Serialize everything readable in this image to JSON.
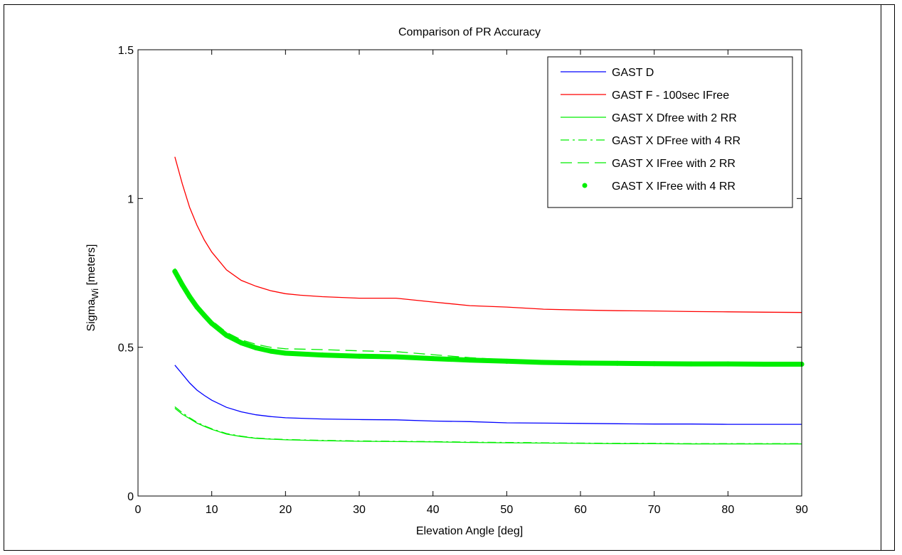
{
  "chart_data": {
    "type": "line",
    "title": "Comparison of PR Accuracy",
    "xlabel": "Elevation Angle [deg]",
    "ylabel_main": "Sigma",
    "ylabel_sub": "Wi",
    "ylabel_unit": " [meters]",
    "xlim": [
      0,
      90
    ],
    "ylim": [
      0,
      1.5
    ],
    "xticks": [
      0,
      10,
      20,
      30,
      40,
      50,
      60,
      70,
      80,
      90
    ],
    "xtick_labels": [
      "0",
      "10",
      "20",
      "30",
      "40",
      "50",
      "60",
      "70",
      "80",
      "90"
    ],
    "yticks": [
      0,
      0.5,
      1,
      1.5
    ],
    "ytick_labels": [
      "0",
      "0.5",
      "1",
      "1.5"
    ],
    "grid": false,
    "legend_position": "top-right",
    "colors": {
      "blue": "#0000ff",
      "red": "#ff0000",
      "green": "#00ee00"
    },
    "series": [
      {
        "name": "GAST D",
        "color": "#0000ff",
        "style": "solid",
        "x": [
          5,
          6,
          7,
          8,
          9,
          10,
          12,
          14,
          16,
          18,
          20,
          25,
          30,
          35,
          40,
          45,
          50,
          55,
          60,
          65,
          70,
          75,
          80,
          85,
          90
        ],
        "y": [
          0.44,
          0.41,
          0.38,
          0.356,
          0.338,
          0.322,
          0.298,
          0.283,
          0.273,
          0.267,
          0.263,
          0.259,
          0.257,
          0.256,
          0.252,
          0.25,
          0.246,
          0.245,
          0.244,
          0.243,
          0.242,
          0.242,
          0.241,
          0.241,
          0.241
        ]
      },
      {
        "name": "GAST F - 100sec IFree",
        "color": "#ff0000",
        "style": "solid",
        "x": [
          5,
          6,
          7,
          8,
          9,
          10,
          12,
          14,
          16,
          18,
          20,
          22,
          25,
          30,
          35,
          40,
          45,
          50,
          55,
          60,
          65,
          70,
          75,
          80,
          85,
          90
        ],
        "y": [
          1.14,
          1.05,
          0.97,
          0.91,
          0.86,
          0.82,
          0.76,
          0.725,
          0.705,
          0.69,
          0.68,
          0.675,
          0.67,
          0.665,
          0.665,
          0.652,
          0.64,
          0.635,
          0.628,
          0.625,
          0.623,
          0.622,
          0.62,
          0.619,
          0.618,
          0.617
        ]
      },
      {
        "name": "GAST X Dfree with 2 RR",
        "color": "#00ee00",
        "style": "solid",
        "x": [
          5,
          6,
          7,
          8,
          9,
          10,
          12,
          14,
          16,
          18,
          20,
          25,
          30,
          35,
          40,
          45,
          50,
          55,
          60,
          65,
          70,
          75,
          80,
          85,
          90
        ],
        "y": [
          0.295,
          0.275,
          0.26,
          0.245,
          0.234,
          0.224,
          0.208,
          0.2,
          0.194,
          0.191,
          0.189,
          0.186,
          0.184,
          0.183,
          0.182,
          0.18,
          0.179,
          0.178,
          0.177,
          0.176,
          0.176,
          0.175,
          0.175,
          0.175,
          0.175
        ]
      },
      {
        "name": "GAST X DFree with 4 RR",
        "color": "#00ee00",
        "style": "dashdot",
        "x": [
          5,
          6,
          7,
          8,
          9,
          10,
          12,
          14,
          16,
          18,
          20,
          25,
          30,
          35,
          40,
          45,
          50,
          55,
          60,
          65,
          70,
          75,
          80,
          85,
          90
        ],
        "y": [
          0.3,
          0.28,
          0.263,
          0.248,
          0.236,
          0.226,
          0.21,
          0.201,
          0.195,
          0.192,
          0.19,
          0.187,
          0.185,
          0.184,
          0.183,
          0.181,
          0.18,
          0.179,
          0.178,
          0.177,
          0.177,
          0.176,
          0.176,
          0.176,
          0.176
        ]
      },
      {
        "name": "GAST X IFree with 2 RR",
        "color": "#00ee00",
        "style": "dashed",
        "x": [
          5,
          6,
          7,
          8,
          9,
          10,
          12,
          14,
          16,
          18,
          20,
          25,
          30,
          35,
          40,
          45,
          50,
          55,
          60,
          65,
          70,
          75,
          80,
          85,
          90
        ],
        "y": [
          0.765,
          0.72,
          0.68,
          0.645,
          0.615,
          0.59,
          0.55,
          0.525,
          0.51,
          0.5,
          0.495,
          0.492,
          0.488,
          0.485,
          0.475,
          0.465,
          0.458,
          0.455,
          0.452,
          0.45,
          0.449,
          0.448,
          0.447,
          0.447,
          0.447
        ]
      },
      {
        "name": "GAST X IFree with 4 RR",
        "color": "#00ee00",
        "style": "markers",
        "x": [
          5,
          6,
          7,
          8,
          9,
          10,
          12,
          14,
          16,
          18,
          20,
          25,
          30,
          35,
          40,
          45,
          50,
          55,
          60,
          65,
          70,
          75,
          80,
          85,
          90
        ],
        "y": [
          0.755,
          0.71,
          0.67,
          0.635,
          0.607,
          0.58,
          0.54,
          0.515,
          0.498,
          0.487,
          0.48,
          0.474,
          0.47,
          0.468,
          0.462,
          0.457,
          0.453,
          0.449,
          0.447,
          0.446,
          0.445,
          0.444,
          0.444,
          0.443,
          0.443
        ]
      }
    ]
  }
}
